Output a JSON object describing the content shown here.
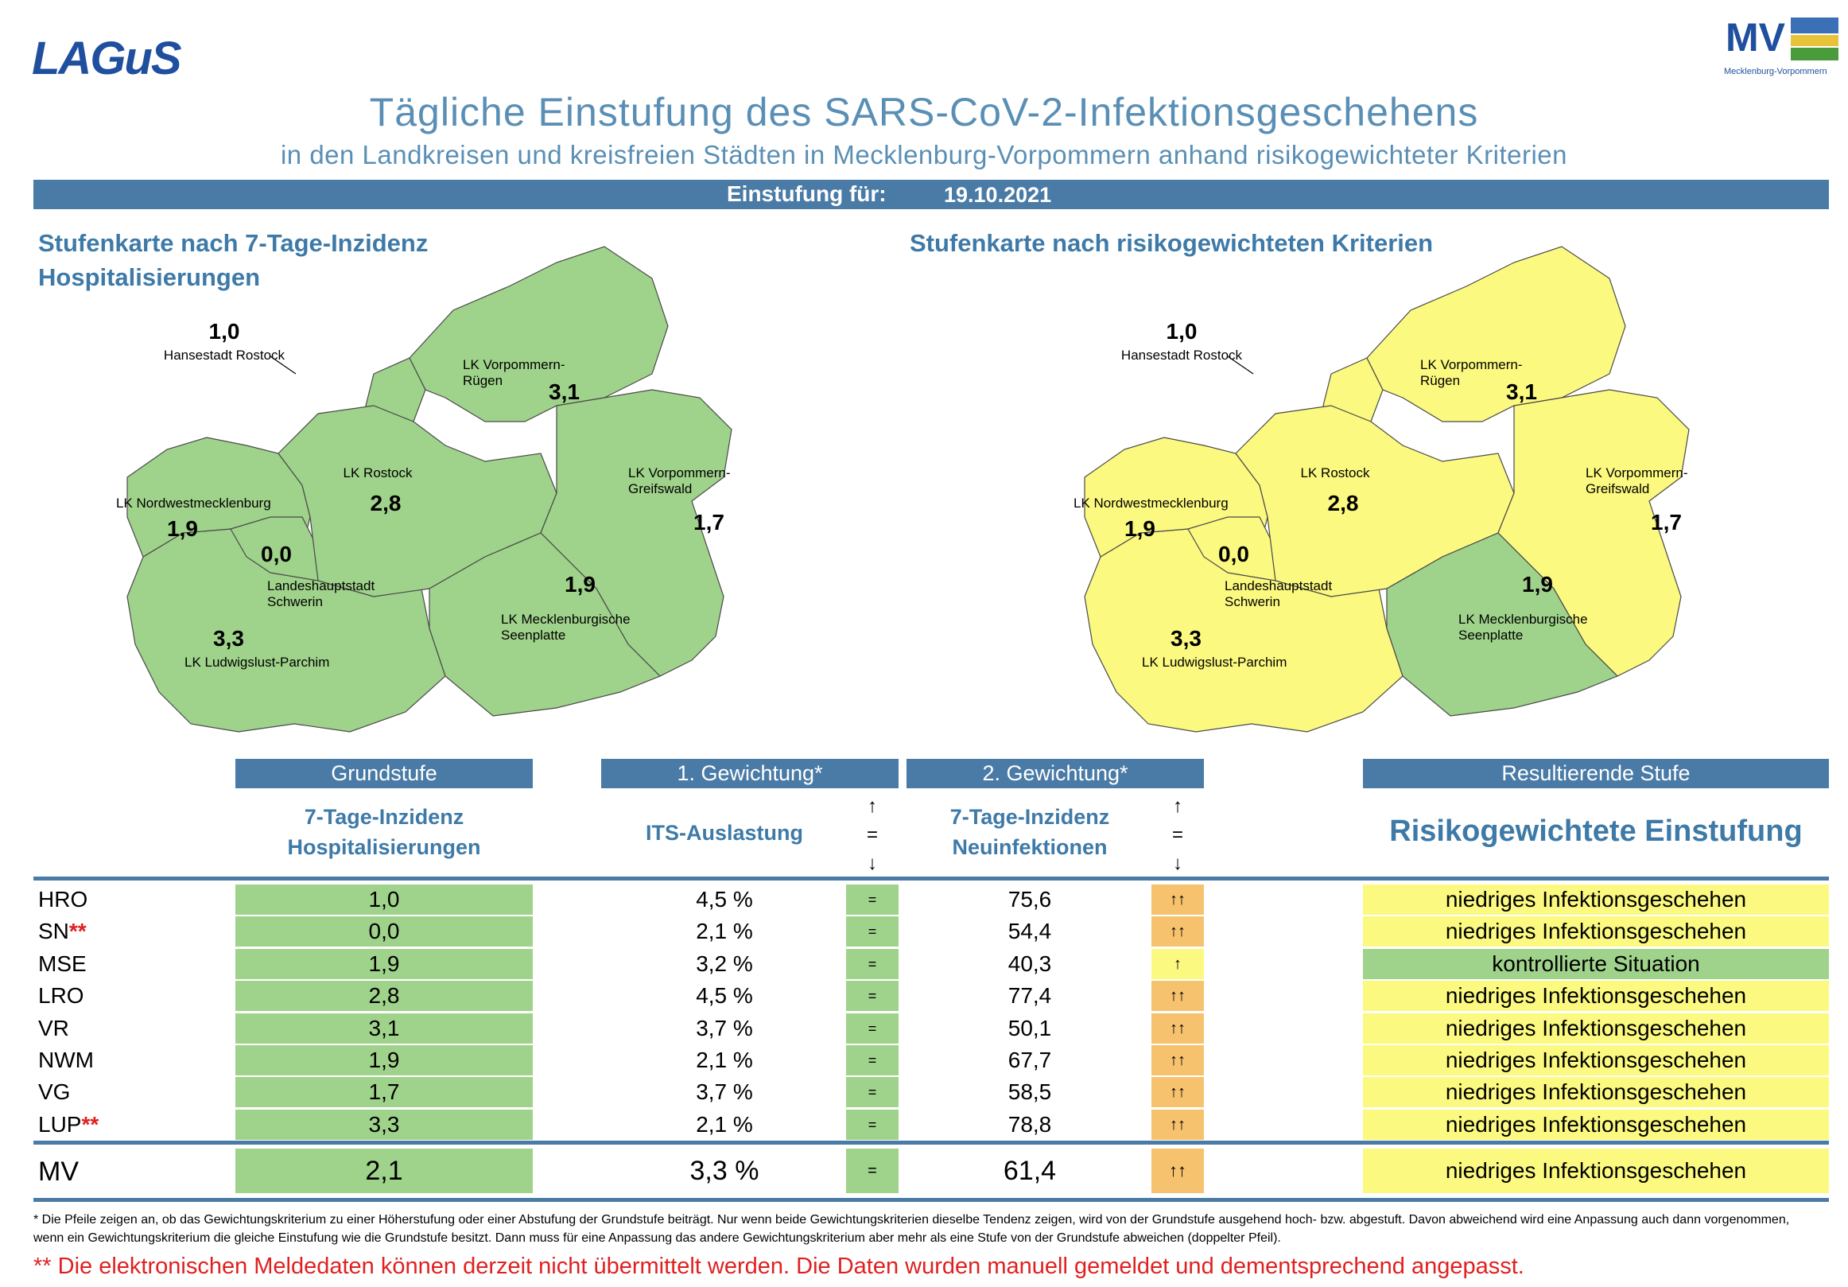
{
  "logos": {
    "left": "LAGuS",
    "right": "MV",
    "right_sub": "Mecklenburg-Vorpommern"
  },
  "title": "Tägliche Einstufung des SARS-CoV-2-Infektionsgeschehens",
  "subtitle": "in den Landkreisen und kreisfreien Städten in Mecklenburg-Vorpommern anhand risikogewichteter Kriterien",
  "date_label": "Einstufung für:",
  "date_value": "19.10.2021",
  "map_left": {
    "heading_line1": "Stufenkarte nach 7-Tage-Inzidenz",
    "heading_line2": "Hospitalisierungen"
  },
  "map_right": {
    "heading_line1": "Stufenkarte nach risikogewichteten Kriterien"
  },
  "regions": {
    "hro": {
      "name": "Hansestadt Rostock",
      "value": "1,0"
    },
    "vr": {
      "name1": "LK Vorpommern-",
      "name2": "Rügen",
      "value": "3,1"
    },
    "lro": {
      "name": "LK Rostock",
      "value": "2,8"
    },
    "vg": {
      "name1": "LK Vorpommern-",
      "name2": "Greifswald",
      "value": "1,7"
    },
    "nwm": {
      "name": "LK Nordwestmecklenburg",
      "value": "1,9"
    },
    "sn": {
      "name1": "Landeshauptstadt",
      "name2": "Schwerin",
      "value": "0,0"
    },
    "mse": {
      "name1": "LK Mecklenburgische",
      "name2": "Seenplatte",
      "value": "1,9"
    },
    "lup": {
      "name": "LK Ludwigslust-Parchim",
      "value": "3,3"
    }
  },
  "colors": {
    "green": "#9fd28a",
    "yellow": "#fbf97f",
    "orange": "#f7c26e",
    "blue": "#4a7ba6"
  },
  "table": {
    "head_grundstufe": "Grundstufe",
    "head_gew1": "1. Gewichtung*",
    "head_gew2": "2. Gewichtung*",
    "head_result": "Resultierende Stufe",
    "sub_grund_1": "7-Tage-Inzidenz",
    "sub_grund_2": "Hospitalisierungen",
    "sub_its": "ITS-Auslastung",
    "sub_inz_1": "7-Tage-Inzidenz",
    "sub_inz_2": "Neuinfektionen",
    "arrow_up": "↑",
    "arrow_eq": "=",
    "arrow_down": "↓",
    "sub_result": "Risikogewichtete Einstufung",
    "rows": [
      {
        "abbr": "HRO",
        "star": "",
        "grund": "1,0",
        "its": "4,5 %",
        "t1": "=",
        "inz": "75,6",
        "t2": "↑↑",
        "result": "niedriges Infektionsgeschehen"
      },
      {
        "abbr": "SN",
        "star": "**",
        "grund": "0,0",
        "its": "2,1 %",
        "t1": "=",
        "inz": "54,4",
        "t2": "↑↑",
        "result": "niedriges Infektionsgeschehen"
      },
      {
        "abbr": "MSE",
        "star": "",
        "grund": "1,9",
        "its": "3,2 %",
        "t1": "=",
        "inz": "40,3",
        "t2": "↑",
        "result": "kontrollierte Situation"
      },
      {
        "abbr": "LRO",
        "star": "",
        "grund": "2,8",
        "its": "4,5 %",
        "t1": "=",
        "inz": "77,4",
        "t2": "↑↑",
        "result": "niedriges Infektionsgeschehen"
      },
      {
        "abbr": "VR",
        "star": "",
        "grund": "3,1",
        "its": "3,7 %",
        "t1": "=",
        "inz": "50,1",
        "t2": "↑↑",
        "result": "niedriges Infektionsgeschehen"
      },
      {
        "abbr": "NWM",
        "star": "",
        "grund": "1,9",
        "its": "2,1 %",
        "t1": "=",
        "inz": "67,7",
        "t2": "↑↑",
        "result": "niedriges Infektionsgeschehen"
      },
      {
        "abbr": "VG",
        "star": "",
        "grund": "1,7",
        "its": "3,7 %",
        "t1": "=",
        "inz": "58,5",
        "t2": "↑↑",
        "result": "niedriges Infektionsgeschehen"
      },
      {
        "abbr": "LUP",
        "star": "**",
        "grund": "3,3",
        "its": "2,1 %",
        "t1": "=",
        "inz": "78,8",
        "t2": "↑↑",
        "result": "niedriges Infektionsgeschehen"
      }
    ],
    "total": {
      "abbr": "MV",
      "grund": "2,1",
      "its": "3,3 %",
      "t1": "=",
      "inz": "61,4",
      "t2": "↑↑",
      "result": "niedriges Infektionsgeschehen"
    }
  },
  "footnote": "* Die Pfeile zeigen an, ob das Gewichtungskriterium zu einer Höherstufung oder einer Abstufung der Grundstufe beiträgt. Nur wenn beide Gewichtungskriterien dieselbe Tendenz zeigen, wird von der Grundstufe ausgehend hoch- bzw. abgestuft. Davon abweichend wird eine Anpassung auch dann vorgenommen, wenn ein Gewichtungskriterium die gleiche Einstufung wie die Grundstufe besitzt. Dann muss für eine Anpassung das andere Gewichtungskriterium aber mehr als eine Stufe von der Grundstufe abweichen (doppelter Pfeil).",
  "manual_note": "** Die elektronischen Meldedaten können derzeit nicht übermittelt werden. Die Daten wurden manuell gemeldet und dementsprechend angepasst."
}
